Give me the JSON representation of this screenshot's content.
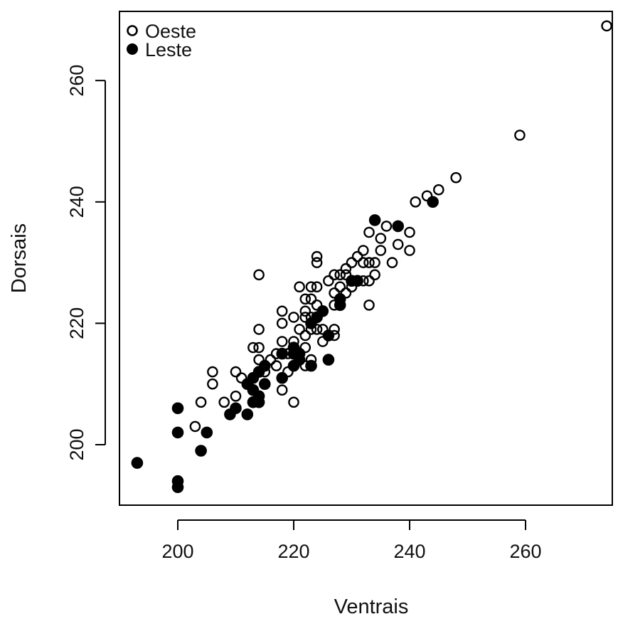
{
  "chart_data": {
    "type": "scatter",
    "xlabel": "Ventrais",
    "ylabel": "Dorsais",
    "xlim": [
      190,
      276
    ],
    "ylim": [
      190,
      272
    ],
    "x_ticks": [
      200,
      220,
      240,
      260
    ],
    "y_ticks": [
      200,
      220,
      240,
      260
    ],
    "x_tick_labels": [
      "200",
      "220",
      "240",
      "260"
    ],
    "y_tick_labels": [
      "200",
      "220",
      "240",
      "260"
    ],
    "grid": false,
    "legend": {
      "placement": "top-left",
      "entries": [
        {
          "label": "Oeste",
          "marker": "open-circle"
        },
        {
          "label": "Leste",
          "marker": "filled-circle"
        }
      ]
    },
    "series": [
      {
        "name": "Oeste",
        "marker": "open-circle",
        "points": [
          [
            203,
            203
          ],
          [
            204,
            207
          ],
          [
            206,
            210
          ],
          [
            206,
            212
          ],
          [
            208,
            207
          ],
          [
            209,
            205
          ],
          [
            210,
            208
          ],
          [
            210,
            212
          ],
          [
            211,
            211
          ],
          [
            212,
            210
          ],
          [
            213,
            216
          ],
          [
            214,
            214
          ],
          [
            214,
            216
          ],
          [
            214,
            219
          ],
          [
            214,
            228
          ],
          [
            215,
            212
          ],
          [
            216,
            214
          ],
          [
            217,
            213
          ],
          [
            217,
            215
          ],
          [
            218,
            209
          ],
          [
            218,
            217
          ],
          [
            218,
            220
          ],
          [
            218,
            222
          ],
          [
            219,
            212
          ],
          [
            219,
            215
          ],
          [
            220,
            207
          ],
          [
            220,
            216
          ],
          [
            220,
            217
          ],
          [
            220,
            221
          ],
          [
            221,
            214
          ],
          [
            221,
            219
          ],
          [
            221,
            226
          ],
          [
            222,
            213
          ],
          [
            222,
            216
          ],
          [
            222,
            218
          ],
          [
            222,
            221
          ],
          [
            222,
            222
          ],
          [
            222,
            224
          ],
          [
            223,
            214
          ],
          [
            223,
            219
          ],
          [
            223,
            221
          ],
          [
            223,
            224
          ],
          [
            223,
            226
          ],
          [
            224,
            219
          ],
          [
            224,
            223
          ],
          [
            224,
            226
          ],
          [
            224,
            230
          ],
          [
            224,
            231
          ],
          [
            225,
            217
          ],
          [
            225,
            219
          ],
          [
            226,
            218
          ],
          [
            226,
            227
          ],
          [
            227,
            218
          ],
          [
            227,
            219
          ],
          [
            227,
            223
          ],
          [
            227,
            225
          ],
          [
            227,
            228
          ],
          [
            228,
            226
          ],
          [
            228,
            228
          ],
          [
            229,
            225
          ],
          [
            229,
            228
          ],
          [
            229,
            229
          ],
          [
            230,
            226
          ],
          [
            230,
            230
          ],
          [
            231,
            227
          ],
          [
            231,
            231
          ],
          [
            232,
            227
          ],
          [
            232,
            230
          ],
          [
            232,
            232
          ],
          [
            233,
            223
          ],
          [
            233,
            227
          ],
          [
            233,
            230
          ],
          [
            233,
            235
          ],
          [
            234,
            228
          ],
          [
            234,
            230
          ],
          [
            235,
            232
          ],
          [
            235,
            234
          ],
          [
            236,
            236
          ],
          [
            237,
            230
          ],
          [
            238,
            233
          ],
          [
            240,
            232
          ],
          [
            240,
            235
          ],
          [
            241,
            240
          ],
          [
            243,
            241
          ],
          [
            245,
            242
          ],
          [
            248,
            244
          ],
          [
            259,
            251
          ],
          [
            274,
            269
          ]
        ]
      },
      {
        "name": "Leste",
        "marker": "filled-circle",
        "points": [
          [
            193,
            197
          ],
          [
            200,
            193
          ],
          [
            200,
            194
          ],
          [
            200,
            202
          ],
          [
            200,
            206
          ],
          [
            204,
            199
          ],
          [
            205,
            202
          ],
          [
            209,
            205
          ],
          [
            210,
            206
          ],
          [
            212,
            205
          ],
          [
            212,
            210
          ],
          [
            213,
            207
          ],
          [
            213,
            209
          ],
          [
            213,
            211
          ],
          [
            214,
            207
          ],
          [
            214,
            208
          ],
          [
            214,
            212
          ],
          [
            215,
            210
          ],
          [
            215,
            213
          ],
          [
            218,
            211
          ],
          [
            218,
            215
          ],
          [
            220,
            213
          ],
          [
            220,
            215
          ],
          [
            220,
            216
          ],
          [
            221,
            214
          ],
          [
            221,
            215
          ],
          [
            223,
            213
          ],
          [
            223,
            220
          ],
          [
            224,
            221
          ],
          [
            225,
            222
          ],
          [
            226,
            214
          ],
          [
            226,
            218
          ],
          [
            228,
            223
          ],
          [
            228,
            224
          ],
          [
            230,
            227
          ],
          [
            231,
            227
          ],
          [
            234,
            237
          ],
          [
            238,
            236
          ],
          [
            244,
            240
          ]
        ]
      }
    ]
  }
}
